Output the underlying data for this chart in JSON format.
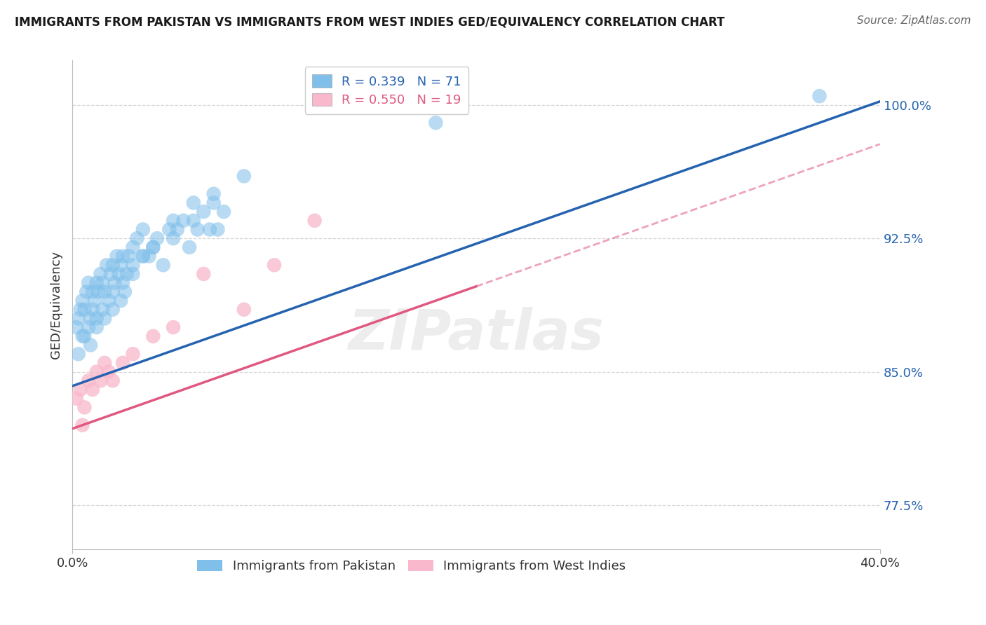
{
  "title": "IMMIGRANTS FROM PAKISTAN VS IMMIGRANTS FROM WEST INDIES GED/EQUIVALENCY CORRELATION CHART",
  "source": "Source: ZipAtlas.com",
  "ylabel": "GED/Equivalency",
  "xlim": [
    0.0,
    40.0
  ],
  "ylim": [
    75.0,
    102.5
  ],
  "y_ticks": [
    77.5,
    85.0,
    92.5,
    100.0
  ],
  "y_tick_labels": [
    "77.5%",
    "85.0%",
    "92.5%",
    "100.0%"
  ],
  "x_tick_labels": [
    "0.0%",
    "40.0%"
  ],
  "blue_color": "#7fbfea",
  "pink_color": "#f9b8cb",
  "blue_line_color": "#2563b0",
  "pink_line_color": "#e05880",
  "legend_r_blue": "R = 0.339",
  "legend_n_blue": "N = 71",
  "legend_r_pink": "R = 0.550",
  "legend_n_pink": "N = 19",
  "blue_line_x0": 0.0,
  "blue_line_y0": 84.2,
  "blue_line_x1": 40.0,
  "blue_line_y1": 100.2,
  "pink_line_x0": 0.0,
  "pink_line_y0": 81.8,
  "pink_line_x1": 40.0,
  "pink_line_y1": 97.8,
  "pink_solid_x1": 20.0,
  "watermark": "ZIPatlas",
  "background_color": "#ffffff",
  "grid_color": "#cccccc",
  "pakistan_x": [
    0.2,
    0.3,
    0.4,
    0.5,
    0.5,
    0.6,
    0.7,
    0.8,
    0.8,
    0.9,
    1.0,
    1.0,
    1.1,
    1.2,
    1.2,
    1.3,
    1.4,
    1.5,
    1.5,
    1.6,
    1.7,
    1.8,
    1.9,
    2.0,
    2.0,
    2.1,
    2.2,
    2.3,
    2.4,
    2.5,
    2.5,
    2.6,
    2.7,
    2.8,
    3.0,
    3.0,
    3.2,
    3.5,
    3.5,
    3.8,
    4.0,
    4.2,
    4.5,
    4.8,
    5.0,
    5.2,
    5.5,
    5.8,
    6.0,
    6.2,
    6.5,
    6.8,
    7.0,
    7.2,
    7.5,
    0.3,
    0.6,
    0.9,
    1.2,
    1.6,
    2.0,
    2.4,
    3.0,
    3.5,
    4.0,
    5.0,
    6.0,
    7.0,
    8.5,
    18.0,
    37.0
  ],
  "pakistan_y": [
    87.5,
    88.0,
    88.5,
    87.0,
    89.0,
    88.5,
    89.5,
    87.5,
    90.0,
    88.0,
    89.5,
    88.5,
    89.0,
    90.0,
    88.0,
    89.5,
    90.5,
    88.5,
    90.0,
    89.5,
    91.0,
    89.0,
    90.5,
    89.5,
    91.0,
    90.0,
    91.5,
    90.5,
    91.0,
    90.0,
    91.5,
    89.5,
    90.5,
    91.5,
    91.0,
    92.0,
    92.5,
    91.5,
    93.0,
    91.5,
    92.0,
    92.5,
    91.0,
    93.0,
    92.5,
    93.0,
    93.5,
    92.0,
    93.5,
    93.0,
    94.0,
    93.0,
    94.5,
    93.0,
    94.0,
    86.0,
    87.0,
    86.5,
    87.5,
    88.0,
    88.5,
    89.0,
    90.5,
    91.5,
    92.0,
    93.5,
    94.5,
    95.0,
    96.0,
    99.0,
    100.5
  ],
  "westindies_x": [
    0.2,
    0.4,
    0.5,
    0.6,
    0.8,
    1.0,
    1.2,
    1.4,
    1.6,
    1.8,
    2.0,
    2.5,
    3.0,
    4.0,
    5.0,
    6.5,
    8.5,
    10.0,
    12.0
  ],
  "westindies_y": [
    83.5,
    84.0,
    82.0,
    83.0,
    84.5,
    84.0,
    85.0,
    84.5,
    85.5,
    85.0,
    84.5,
    85.5,
    86.0,
    87.0,
    87.5,
    90.5,
    88.5,
    91.0,
    93.5
  ]
}
